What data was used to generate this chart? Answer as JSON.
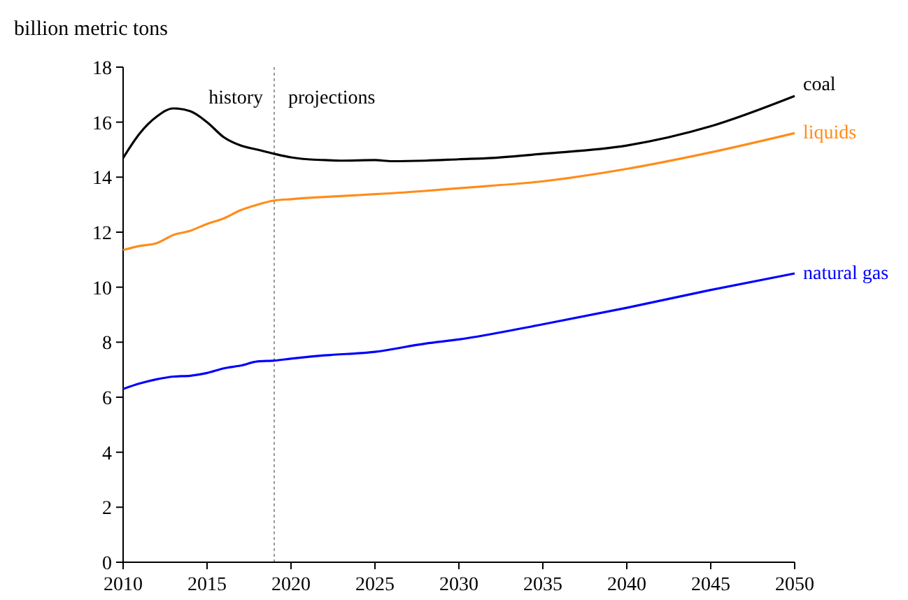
{
  "chart_data": {
    "type": "line",
    "ylabel": "billion metric tons",
    "xlim": [
      2010,
      2050
    ],
    "xticks": [
      2010,
      2015,
      2020,
      2025,
      2030,
      2035,
      2040,
      2045,
      2050
    ],
    "ylim": [
      0,
      18
    ],
    "yticks": [
      0,
      2,
      4,
      6,
      8,
      10,
      12,
      14,
      16,
      18
    ],
    "grid": false,
    "ref_lines": [
      {
        "axis": "x",
        "value": 2019,
        "color": "#999999",
        "line_style": "dotted"
      }
    ],
    "annotations": [
      "history",
      "projections"
    ],
    "series": [
      {
        "name": "coal",
        "color": "#000000",
        "x": [
          2010,
          2011,
          2012,
          2013,
          2014,
          2015,
          2016,
          2017,
          2018,
          2019,
          2020,
          2021,
          2022,
          2023,
          2025,
          2026,
          2028,
          2030,
          2032,
          2035,
          2040,
          2045,
          2050
        ],
        "values": [
          14.7,
          15.6,
          16.2,
          16.5,
          16.4,
          16.0,
          15.45,
          15.15,
          15.0,
          14.85,
          14.72,
          14.65,
          14.62,
          14.6,
          14.62,
          14.58,
          14.6,
          14.65,
          14.7,
          14.85,
          15.15,
          15.85,
          16.95
        ]
      },
      {
        "name": "liquids",
        "color": "#ff8c1a",
        "x": [
          2010,
          2011,
          2012,
          2013,
          2014,
          2015,
          2016,
          2017,
          2018,
          2019,
          2020,
          2022,
          2025,
          2028,
          2030,
          2035,
          2040,
          2045,
          2050
        ],
        "values": [
          11.35,
          11.5,
          11.6,
          11.9,
          12.05,
          12.3,
          12.5,
          12.8,
          13.0,
          13.15,
          13.2,
          13.28,
          13.38,
          13.5,
          13.6,
          13.85,
          14.3,
          14.9,
          15.6
        ]
      },
      {
        "name": "natural gas",
        "color": "#0000ff",
        "x": [
          2010,
          2011,
          2012,
          2013,
          2014,
          2015,
          2016,
          2017,
          2018,
          2019,
          2020,
          2022,
          2025,
          2028,
          2030,
          2035,
          2040,
          2045,
          2050
        ],
        "values": [
          6.3,
          6.5,
          6.65,
          6.75,
          6.78,
          6.88,
          7.05,
          7.15,
          7.3,
          7.33,
          7.4,
          7.52,
          7.65,
          7.95,
          8.1,
          8.65,
          9.25,
          9.9,
          10.5
        ]
      }
    ]
  }
}
